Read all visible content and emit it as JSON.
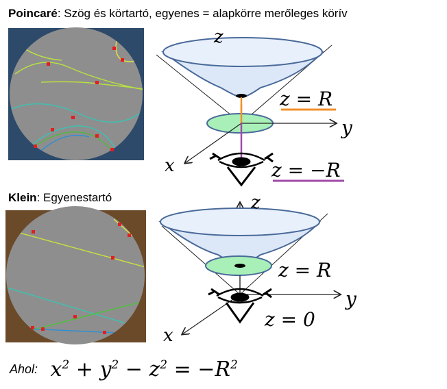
{
  "poincare": {
    "title": "Poincaré",
    "desc": ": Szög és körtartó,  egyenes = alapkörre merőleges körív",
    "panel_bg": "#2d4a6a",
    "labels": {
      "z": "z",
      "y": "y",
      "x": "x",
      "upper_plane": "z = R",
      "lower_plane": "z = −R"
    },
    "upper_line_color": "#f0902a",
    "lower_line_color": "#a04aa8"
  },
  "klein": {
    "title": "Klein",
    "desc": ": Egyenestartó",
    "panel_bg": "#6b4a2a",
    "labels": {
      "z": "z",
      "y": "y",
      "x": "x",
      "upper_plane": "z = R",
      "lower_plane": "z = 0"
    }
  },
  "formula": {
    "prefix": "Ahol:",
    "equation_parts": [
      "x",
      "2",
      " + y",
      "2",
      " − z",
      "2",
      " = −R",
      "2"
    ]
  },
  "colors": {
    "disk_gray": "#8e8e8e",
    "hyperboloid_fill": "#dce8f8",
    "hyperboloid_stroke": "#4a6a9a",
    "plane_green": "#a8f0b8",
    "axis": "#222222",
    "point_red": "#e02020"
  }
}
